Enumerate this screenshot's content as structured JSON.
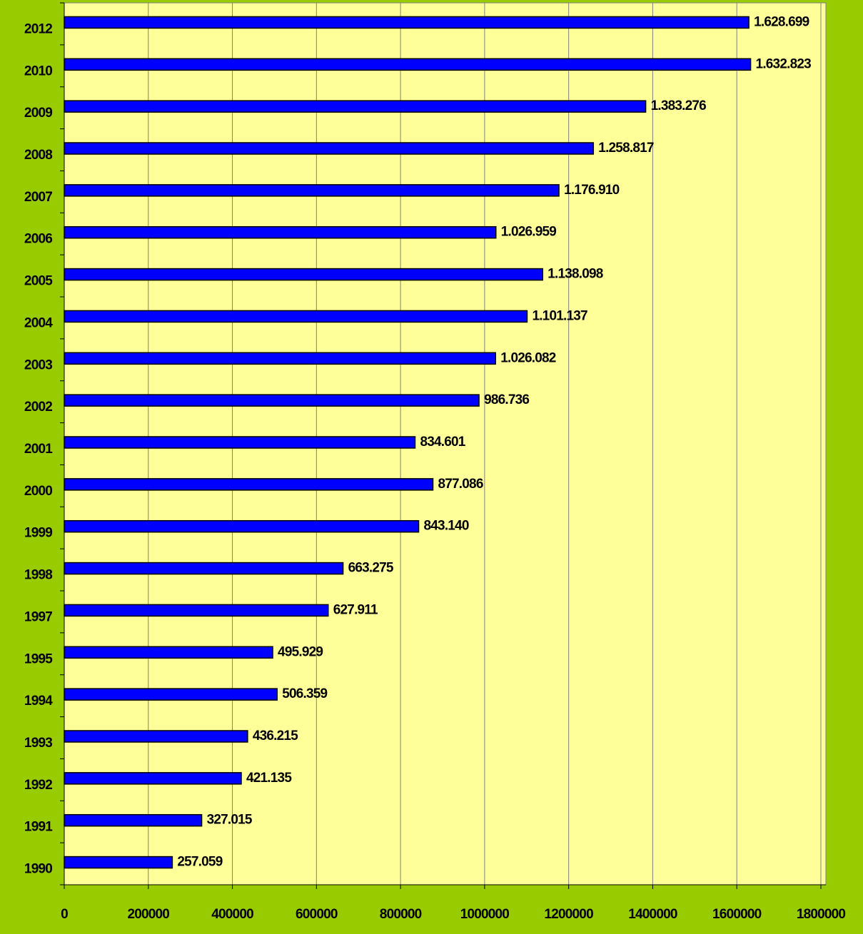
{
  "chart_data": {
    "type": "bar",
    "orientation": "horizontal",
    "categories": [
      "2012",
      "2010",
      "2009",
      "2008",
      "2007",
      "2006",
      "2005",
      "2004",
      "2003",
      "2002",
      "2001",
      "2000",
      "1999",
      "1998",
      "1997",
      "1995",
      "1994",
      "1993",
      "1992",
      "1991",
      "1990"
    ],
    "values": [
      1628699,
      1632823,
      1383276,
      1258817,
      1176910,
      1026959,
      1138098,
      1101137,
      1026082,
      986736,
      834601,
      877086,
      843140,
      663275,
      627911,
      495929,
      506359,
      436215,
      421135,
      327015,
      257059
    ],
    "value_labels": [
      "1.628.699",
      "1.632.823",
      "1.383.276",
      "1.258.817",
      "1.176.910",
      "1.026.959",
      "1.138.098",
      "1.101.137",
      "1.026.082",
      "986.736",
      "834.601",
      "877.086",
      "843.140",
      "663.275",
      "627.911",
      "495.929",
      "506.359",
      "436.215",
      "421.135",
      "327.015",
      "257.059"
    ],
    "color": "#0000ff",
    "xlim": [
      0,
      1800000
    ],
    "xticks": [
      0,
      200000,
      400000,
      600000,
      800000,
      1000000,
      1200000,
      1400000,
      1600000,
      1800000
    ],
    "grid": true
  }
}
